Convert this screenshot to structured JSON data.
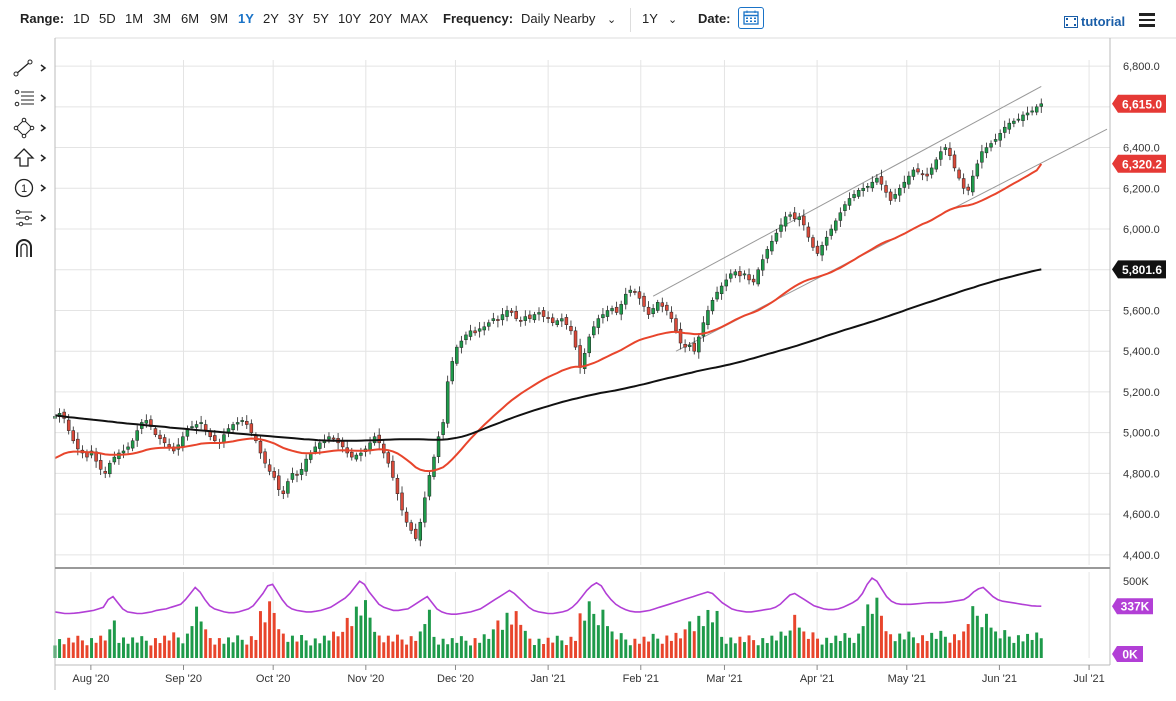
{
  "toolbar": {
    "range_label": "Range:",
    "ranges": [
      "1D",
      "5D",
      "1M",
      "3M",
      "6M",
      "9M",
      "1Y",
      "2Y",
      "3Y",
      "5Y",
      "10Y",
      "20Y",
      "MAX"
    ],
    "active_range": "1Y",
    "frequency_label": "Frequency:",
    "frequency_value": "Daily Nearby",
    "period_value": "1Y",
    "date_label": "Date:",
    "tutorial_label": "tutorial"
  },
  "left_tools": [
    "line-draw-icon",
    "fib-retracement-icon",
    "shapes-icon",
    "arrow-up-icon",
    "annotation-number-icon",
    "pattern-icon",
    "magnet-icon"
  ],
  "chart_data": {
    "type": "candlestick",
    "price_axis": {
      "ticks": [
        "6,800.0",
        "6,600.0",
        "6,400.0",
        "6,200.0",
        "6,000.0",
        "5,800.0",
        "5,600.0",
        "5,400.0",
        "5,200.0",
        "5,000.0",
        "4,800.0",
        "4,600.0",
        "4,400.0"
      ],
      "ylim": [
        4350,
        6830
      ]
    },
    "volume_axis": {
      "ticks": [
        "500K",
        "0K"
      ],
      "ylim": [
        0,
        560000
      ]
    },
    "x_ticks": [
      "Aug '20",
      "Sep '20",
      "Oct '20",
      "Nov '20",
      "Dec '20",
      "Jan '21",
      "Feb '21",
      "Mar '21",
      "Apr '21",
      "May '21",
      "Jun '21",
      "Jul '21"
    ],
    "start_date": "2020-07-20",
    "end_date": "2021-06-15",
    "price_labels": [
      {
        "text": "6,615.0",
        "value": 6615,
        "color": "#e53935"
      },
      {
        "text": "6,320.2",
        "value": 6320.2,
        "color": "#e53935"
      },
      {
        "text": "5,801.6",
        "value": 5801.6,
        "color": "#111111"
      }
    ],
    "volume_labels": [
      {
        "text": "337K",
        "color": "#b23fd6"
      },
      {
        "text": "0K",
        "color": "#b23fd6"
      }
    ],
    "closes": [
      5080,
      5095,
      5070,
      5010,
      4960,
      4920,
      4900,
      4880,
      4910,
      4860,
      4820,
      4800,
      4850,
      4880,
      4900,
      4910,
      4930,
      4960,
      5010,
      5050,
      5060,
      5030,
      4990,
      4970,
      4950,
      4930,
      4910,
      4940,
      4980,
      5020,
      5030,
      5040,
      5050,
      5010,
      4980,
      4960,
      4950,
      4990,
      5020,
      5040,
      5050,
      5060,
      5040,
      5000,
      4960,
      4900,
      4850,
      4810,
      4780,
      4720,
      4700,
      4760,
      4800,
      4790,
      4820,
      4870,
      4900,
      4930,
      4950,
      4960,
      4980,
      4970,
      4950,
      4930,
      4900,
      4880,
      4890,
      4900,
      4920,
      4950,
      4980,
      4950,
      4900,
      4850,
      4780,
      4700,
      4620,
      4560,
      4520,
      4480,
      4560,
      4680,
      4790,
      4880,
      4980,
      5050,
      5250,
      5350,
      5420,
      5450,
      5480,
      5500,
      5490,
      5510,
      5520,
      5540,
      5560,
      5550,
      5580,
      5600,
      5590,
      5560,
      5550,
      5570,
      5560,
      5580,
      5590,
      5570,
      5560,
      5540,
      5550,
      5560,
      5530,
      5500,
      5420,
      5320,
      5390,
      5470,
      5520,
      5560,
      5580,
      5600,
      5610,
      5590,
      5630,
      5680,
      5700,
      5690,
      5660,
      5620,
      5580,
      5610,
      5640,
      5620,
      5600,
      5560,
      5500,
      5440,
      5420,
      5430,
      5400,
      5470,
      5540,
      5600,
      5650,
      5690,
      5720,
      5750,
      5780,
      5790,
      5770,
      5780,
      5750,
      5740,
      5800,
      5850,
      5900,
      5940,
      5980,
      6020,
      6060,
      6070,
      6050,
      6060,
      6020,
      5960,
      5910,
      5880,
      5920,
      5960,
      6000,
      6040,
      6080,
      6120,
      6150,
      6170,
      6190,
      6200,
      6210,
      6230,
      6250,
      6220,
      6180,
      6140,
      6170,
      6200,
      6230,
      6260,
      6290,
      6280,
      6270,
      6260,
      6300,
      6340,
      6380,
      6400,
      6360,
      6300,
      6250,
      6200,
      6190,
      6260,
      6320,
      6380,
      6400,
      6420,
      6440,
      6470,
      6500,
      6520,
      6530,
      6540,
      6560,
      6570,
      6580,
      6600,
      6615
    ],
    "ema_fast": [
      4875,
      4886,
      4897,
      4904,
      4907,
      4907,
      4906,
      4904,
      4904,
      4902,
      4898,
      4893,
      4891,
      4891,
      4891,
      4892,
      4894,
      4897,
      4902,
      4908,
      4915,
      4920,
      4923,
      4925,
      4926,
      4926,
      4926,
      4927,
      4929,
      4933,
      4937,
      4941,
      4946,
      4948,
      4949,
      4949,
      4949,
      4951,
      4954,
      4957,
      4962,
      4966,
      4969,
      4971,
      4970,
      4967,
      4962,
      4955,
      4947,
      4936,
      4925,
      4917,
      4911,
      4905,
      4900,
      4899,
      4899,
      4900,
      4902,
      4905,
      4908,
      4911,
      4913,
      4914,
      4913,
      4912,
      4911,
      4911,
      4911,
      4913,
      4916,
      4918,
      4917,
      4914,
      4908,
      4898,
      4884,
      4867,
      4850,
      4830,
      4818,
      4812,
      4811,
      4814,
      4821,
      4830,
      4848,
      4869,
      4893,
      4918,
      4944,
      4970,
      4993,
      5016,
      5038,
      5059,
      5080,
      5100,
      5120,
      5140,
      5159,
      5175,
      5191,
      5206,
      5220,
      5234,
      5248,
      5261,
      5273,
      5283,
      5293,
      5304,
      5312,
      5320,
      5324,
      5324,
      5327,
      5334,
      5342,
      5352,
      5363,
      5374,
      5385,
      5395,
      5406,
      5419,
      5432,
      5444,
      5455,
      5462,
      5468,
      5474,
      5481,
      5486,
      5491,
      5494,
      5495,
      5492,
      5489,
      5487,
      5484,
      5484,
      5487,
      5492,
      5500,
      5509,
      5519,
      5530,
      5542,
      5554,
      5565,
      5575,
      5583,
      5591,
      5601,
      5613,
      5626,
      5640,
      5655,
      5672,
      5688,
      5704,
      5718,
      5731,
      5742,
      5751,
      5758,
      5764,
      5771,
      5779,
      5788,
      5799,
      5810,
      5823,
      5836,
      5849,
      5863,
      5876,
      5889,
      5902,
      5916,
      5928,
      5938,
      5946,
      5955,
      5966,
      5977,
      5989,
      6001,
      6013,
      6024,
      6033,
      6044,
      6057,
      6070,
      6084,
      6095,
      6103,
      6109,
      6113,
      6116,
      6122,
      6130,
      6140,
      6151,
      6162,
      6173,
      6185,
      6198,
      6211,
      6224,
      6236,
      6249,
      6262,
      6275,
      6288,
      6320
    ],
    "sma_slow": [
      5085,
      5082,
      5079,
      5076,
      5074,
      5071,
      5068,
      5066,
      5063,
      5061,
      5058,
      5055,
      5053,
      5050,
      5048,
      5045,
      5043,
      5041,
      5039,
      5036,
      5034,
      5032,
      5030,
      5028,
      5025,
      5023,
      5021,
      5019,
      5017,
      5014,
      5012,
      5010,
      5008,
      5006,
      5004,
      5002,
      5000,
      4998,
      4996,
      4994,
      4992,
      4990,
      4988,
      4986,
      4984,
      4982,
      4980,
      4978,
      4976,
      4974,
      4972,
      4970,
      4968,
      4967,
      4965,
      4963,
      4962,
      4961,
      4960,
      4960,
      4960,
      4960,
      4960,
      4960,
      4961,
      4962,
      4962,
      4963,
      4964,
      4965,
      4966,
      4967,
      4968,
      4968,
      4968,
      4968,
      4968,
      4967,
      4966,
      4965,
      4965,
      4966,
      4968,
      4971,
      4975,
      4980,
      4987,
      4995,
      5004,
      5013,
      5023,
      5032,
      5041,
      5050,
      5059,
      5068,
      5077,
      5085,
      5093,
      5101,
      5109,
      5116,
      5123,
      5130,
      5137,
      5144,
      5151,
      5157,
      5163,
      5168,
      5174,
      5180,
      5185,
      5190,
      5195,
      5199,
      5203,
      5207,
      5212,
      5217,
      5222,
      5227,
      5233,
      5238,
      5244,
      5250,
      5256,
      5262,
      5268,
      5273,
      5278,
      5284,
      5290,
      5295,
      5301,
      5306,
      5311,
      5316,
      5320,
      5325,
      5330,
      5335,
      5341,
      5347,
      5353,
      5360,
      5366,
      5373,
      5380,
      5387,
      5393,
      5400,
      5407,
      5413,
      5420,
      5427,
      5435,
      5442,
      5450,
      5458,
      5466,
      5474,
      5482,
      5489,
      5497,
      5505,
      5512,
      5519,
      5526,
      5533,
      5541,
      5548,
      5556,
      5564,
      5572,
      5580,
      5588,
      5596,
      5605,
      5613,
      5621,
      5629,
      5637,
      5644,
      5652,
      5660,
      5668,
      5676,
      5684,
      5692,
      5700,
      5707,
      5714,
      5722,
      5729,
      5736,
      5743,
      5750,
      5756,
      5762,
      5768,
      5774,
      5780,
      5786,
      5792,
      5797,
      5801.6
    ],
    "volume_ma": [
      300,
      295,
      290,
      290,
      292,
      295,
      300,
      305,
      310,
      320,
      330,
      380,
      400,
      360,
      320,
      300,
      295,
      290,
      290,
      295,
      300,
      310,
      315,
      320,
      330,
      340,
      350,
      380,
      420,
      460,
      430,
      380,
      340,
      320,
      310,
      300,
      295,
      295,
      300,
      310,
      320,
      340,
      380,
      420,
      470,
      480,
      430,
      380,
      340,
      320,
      310,
      305,
      300,
      300,
      305,
      310,
      320,
      330,
      350,
      370,
      390,
      420,
      460,
      500,
      480,
      430,
      390,
      350,
      330,
      320,
      310,
      310,
      315,
      320,
      340,
      360,
      380,
      400,
      360,
      320,
      300,
      290,
      285,
      285,
      290,
      295,
      300,
      310,
      320,
      340,
      360,
      380,
      400,
      420,
      440,
      420,
      390,
      360,
      330,
      310,
      300,
      295,
      290,
      290,
      295,
      300,
      310,
      330,
      360,
      400,
      440,
      470,
      490,
      470,
      420,
      380,
      350,
      330,
      315,
      305,
      300,
      300,
      305,
      310,
      320,
      330,
      340,
      350,
      360,
      370,
      380,
      390,
      400,
      410,
      420,
      430,
      420,
      390,
      360,
      340,
      320,
      310,
      305,
      300,
      300,
      305,
      310,
      315,
      320,
      330,
      350,
      380,
      410,
      420,
      400,
      380,
      360,
      340,
      330,
      320,
      315,
      315,
      320,
      330,
      345,
      360,
      380,
      420,
      480,
      520,
      500,
      450,
      400,
      370,
      355,
      350,
      350,
      350,
      352,
      355,
      358,
      360,
      360,
      360,
      362,
      365,
      370,
      375,
      380,
      400,
      430,
      450,
      460,
      430,
      400,
      380,
      370,
      365,
      360,
      355,
      350,
      345,
      340,
      338,
      337
    ]
  }
}
